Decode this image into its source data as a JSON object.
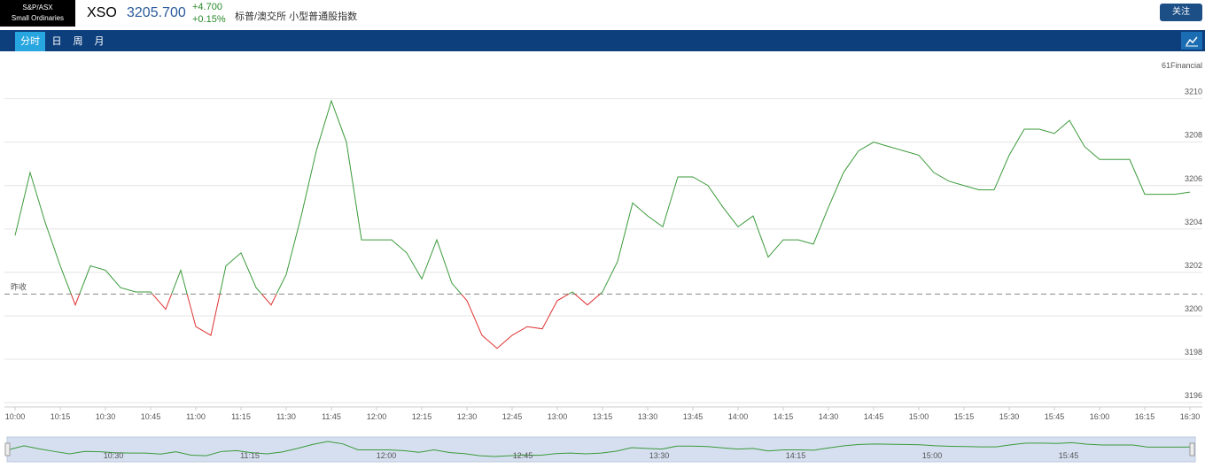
{
  "header": {
    "logo_line1": "S&P/ASX",
    "logo_line2": "Small Ordinaries",
    "symbol": "XSO",
    "price": "3205.700",
    "change": "+4.700",
    "change_pct": "+0.15%",
    "name": "标普/澳交所 小型普通股指数",
    "follow_button": "关注"
  },
  "tabs": [
    "分时",
    "日",
    "周",
    "月"
  ],
  "watermark": "61Financial",
  "chart_data": {
    "type": "line",
    "categories": [
      "10:00",
      null,
      null,
      "10:15",
      null,
      null,
      "10:30",
      null,
      null,
      "10:45",
      null,
      null,
      "11:00",
      null,
      null,
      "11:15",
      null,
      null,
      "11:30",
      null,
      null,
      "11:45",
      null,
      null,
      "12:00",
      null,
      null,
      "12:15",
      null,
      null,
      "12:30",
      null,
      null,
      "12:45",
      null,
      null,
      "13:00",
      null,
      null,
      "13:15",
      null,
      null,
      "13:30",
      null,
      null,
      "13:45",
      null,
      null,
      "14:00",
      null,
      null,
      "14:15",
      null,
      null,
      "14:30",
      null,
      null,
      "14:45",
      null,
      null,
      "15:00",
      null,
      null,
      "15:15",
      null,
      null,
      "15:30",
      null,
      null,
      "15:45",
      null,
      null,
      "16:00",
      null,
      null,
      "16:15",
      null,
      null,
      "16:30"
    ],
    "series": [
      {
        "name": "XSO",
        "color": "#3a9a3a",
        "below_color": "#e03030",
        "values": [
          3203.7,
          3206.6,
          3204.3,
          3202.3,
          3200.5,
          3202.3,
          3202.1,
          3201.3,
          3201.1,
          3201.1,
          3200.3,
          3202.1,
          3199.5,
          3199.1,
          3202.3,
          3202.9,
          3201.3,
          3200.5,
          3201.9,
          3204.6,
          3207.6,
          3209.9,
          3208.0,
          3203.5,
          3203.5,
          3203.5,
          3202.9,
          3201.7,
          3203.5,
          3201.5,
          3200.7,
          3199.1,
          3198.5,
          3199.1,
          3199.5,
          3199.4,
          3200.7,
          3201.1,
          3200.5,
          3201.1,
          3202.5,
          3205.2,
          3204.6,
          3204.1,
          3206.4,
          3206.4,
          3206.0,
          3205.0,
          3204.1,
          3204.6,
          3202.7,
          3203.5,
          3203.5,
          3203.3,
          3205.0,
          3206.6,
          3207.6,
          3208.0,
          3207.8,
          3207.6,
          3207.4,
          3206.6,
          3206.2,
          3206.0,
          3205.8,
          3205.8,
          3207.4,
          3208.6,
          3208.6,
          3208.4,
          3209.0,
          3207.8,
          3207.2,
          3207.2,
          3207.2,
          3205.6,
          3205.6,
          3205.6,
          3205.7
        ]
      }
    ],
    "prev_close": 3201.0,
    "prev_close_label": "昨收",
    "ylim": [
      3195.8,
      3211.9
    ],
    "yticks": [
      3196,
      3198,
      3200,
      3202,
      3204,
      3206,
      3208,
      3210
    ],
    "grid": true
  },
  "navigator": {
    "labels": [
      "10:30",
      "11:15",
      "12:00",
      "12:45",
      "13:30",
      "14:15",
      "15:00",
      "15:45"
    ]
  }
}
